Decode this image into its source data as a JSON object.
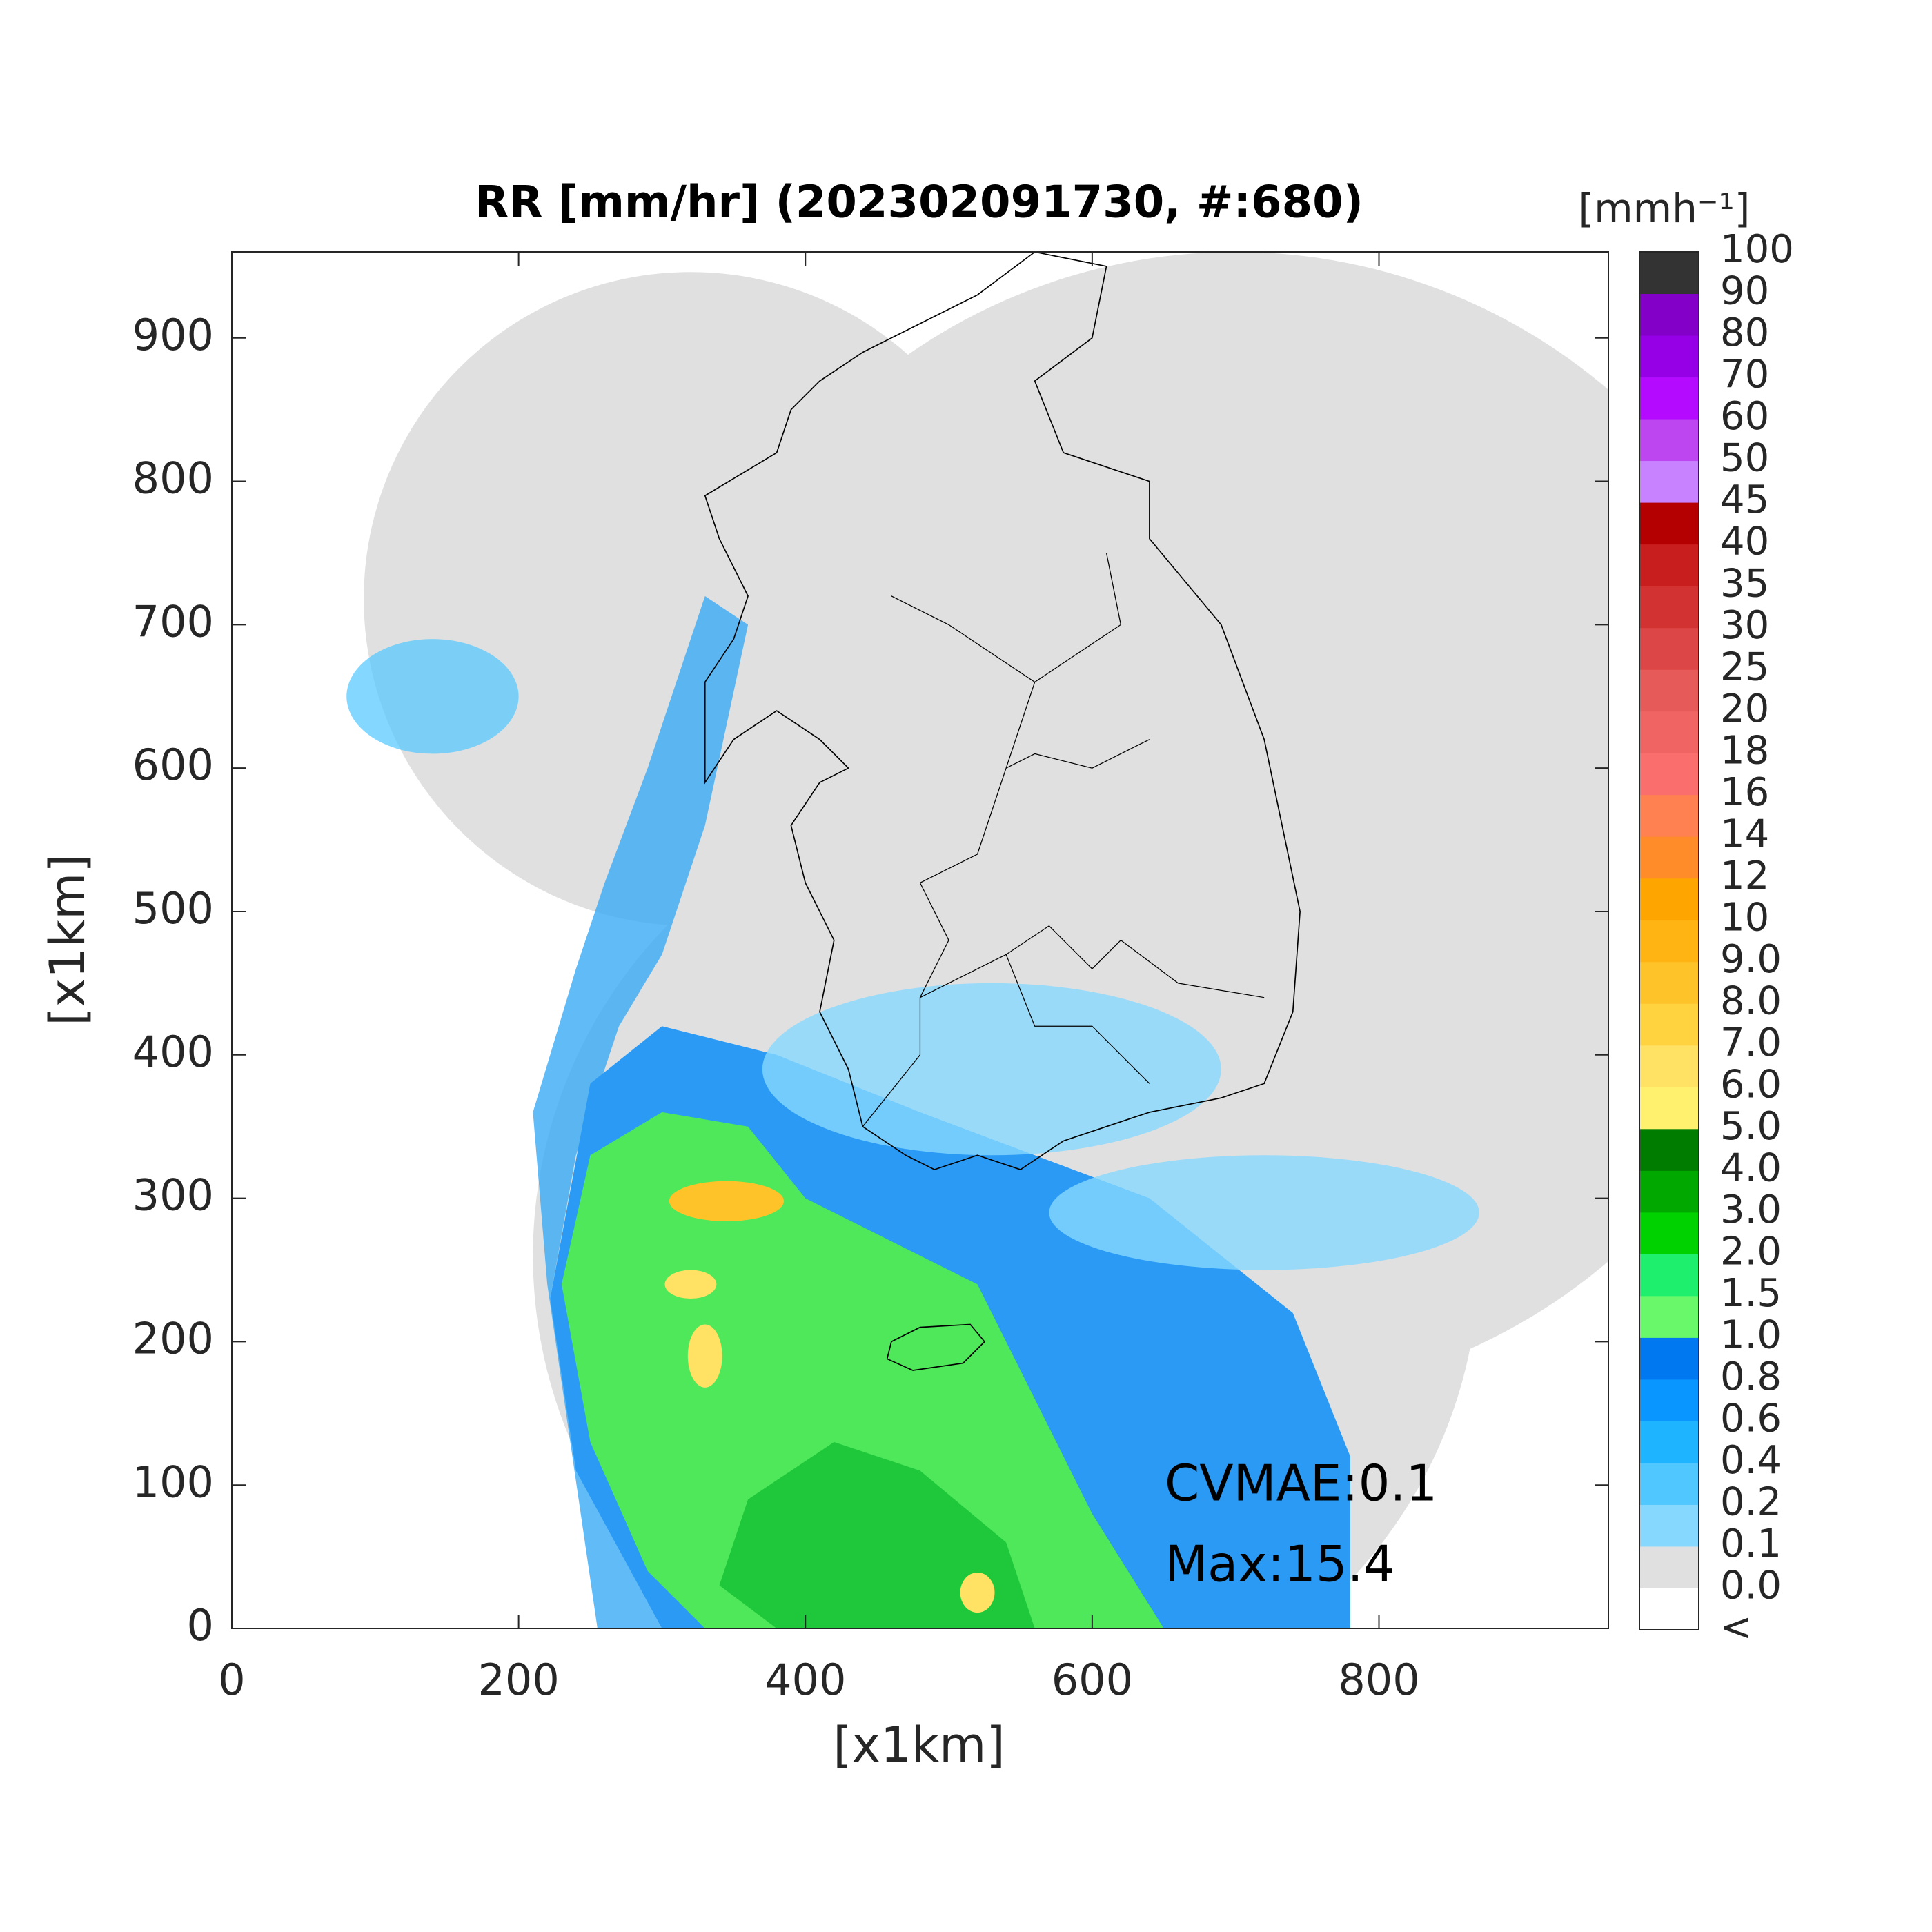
{
  "chart_data": {
    "type": "heatmap",
    "title": "RR [mm/hr] (202302091730, #:680)",
    "xlabel": "[x1km]",
    "ylabel": "[x1km]",
    "xlim": [
      0,
      960
    ],
    "ylim": [
      0,
      960
    ],
    "xticks": [
      0,
      200,
      400,
      600,
      800
    ],
    "yticks": [
      0,
      100,
      200,
      300,
      400,
      500,
      600,
      700,
      800,
      900
    ],
    "annotations": [
      "CVMAE:0.1",
      "Max:15.4"
    ],
    "colorbar": {
      "title": "[mmh⁻¹]",
      "labels": [
        "<",
        "0.0",
        "0.1",
        "0.2",
        "0.4",
        "0.6",
        "0.8",
        "1.0",
        "1.5",
        "2.0",
        "3.0",
        "4.0",
        "5.0",
        "6.0",
        "7.0",
        "8.0",
        "9.0",
        "10",
        "12",
        "14",
        "16",
        "18",
        "20",
        "25",
        "30",
        "35",
        "40",
        "45",
        "50",
        "60",
        "70",
        "80",
        "90",
        "100"
      ],
      "colors": [
        "#ffffff",
        "#e0e0e0",
        "#87d8ff",
        "#50c8ff",
        "#1eb4ff",
        "#0a96ff",
        "#0078f0",
        "#69f869",
        "#1ef06e",
        "#00d200",
        "#00a800",
        "#007d00",
        "#fff06e",
        "#ffe164",
        "#ffd240",
        "#ffc32a",
        "#ffb414",
        "#ffa500",
        "#ff8c28",
        "#ff8050",
        "#fa6e6e",
        "#f06464",
        "#e65a5a",
        "#dc4646",
        "#d23232",
        "#c81e1e",
        "#b40000",
        "#c882ff",
        "#be46f0",
        "#b40aff",
        "#9600e6",
        "#8200c8",
        "#333333"
      ]
    }
  }
}
